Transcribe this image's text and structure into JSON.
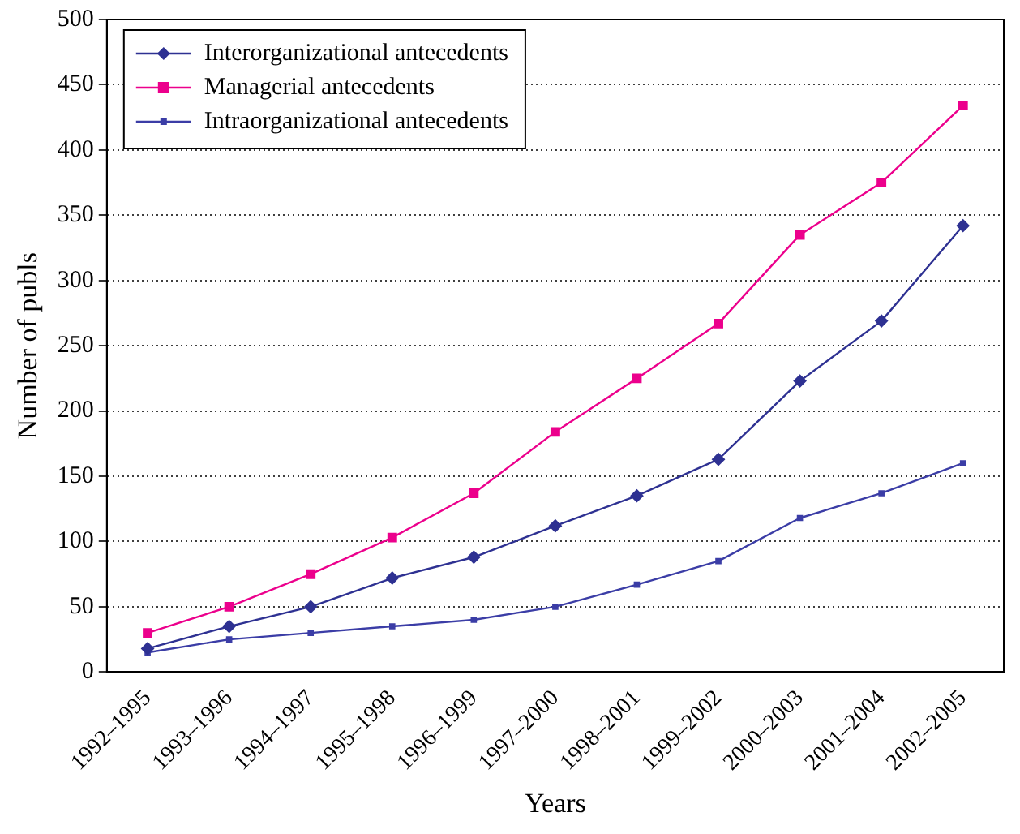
{
  "chart_data": {
    "type": "line",
    "xlabel": "Years",
    "ylabel": "Number of publs",
    "categories": [
      "1992–1995",
      "1993–1996",
      "1994–1997",
      "1995–1998",
      "1996–1999",
      "1997–2000",
      "1998–2001",
      "1999–2002",
      "2000–2003",
      "2001–2004",
      "2002–2005"
    ],
    "series": [
      {
        "name": "Interorganizational antecedents",
        "color": "#2e3192",
        "marker": "diamond",
        "values": [
          18,
          35,
          50,
          72,
          88,
          112,
          135,
          163,
          223,
          269,
          342
        ]
      },
      {
        "name": "Managerial antecedents",
        "color": "#ec008c",
        "marker": "square",
        "values": [
          30,
          50,
          75,
          103,
          137,
          184,
          225,
          267,
          335,
          375,
          434
        ]
      },
      {
        "name": "Intraorganizational antecedents",
        "color": "#3b3da6",
        "marker": "square",
        "values": [
          15,
          25,
          30,
          35,
          40,
          50,
          67,
          85,
          118,
          137,
          160
        ]
      }
    ],
    "ylim": [
      0,
      500
    ],
    "yticks": [
      0,
      50,
      100,
      150,
      200,
      250,
      300,
      350,
      400,
      450,
      500
    ],
    "grid": "y",
    "legend": "top left",
    "line_style": "solid"
  }
}
